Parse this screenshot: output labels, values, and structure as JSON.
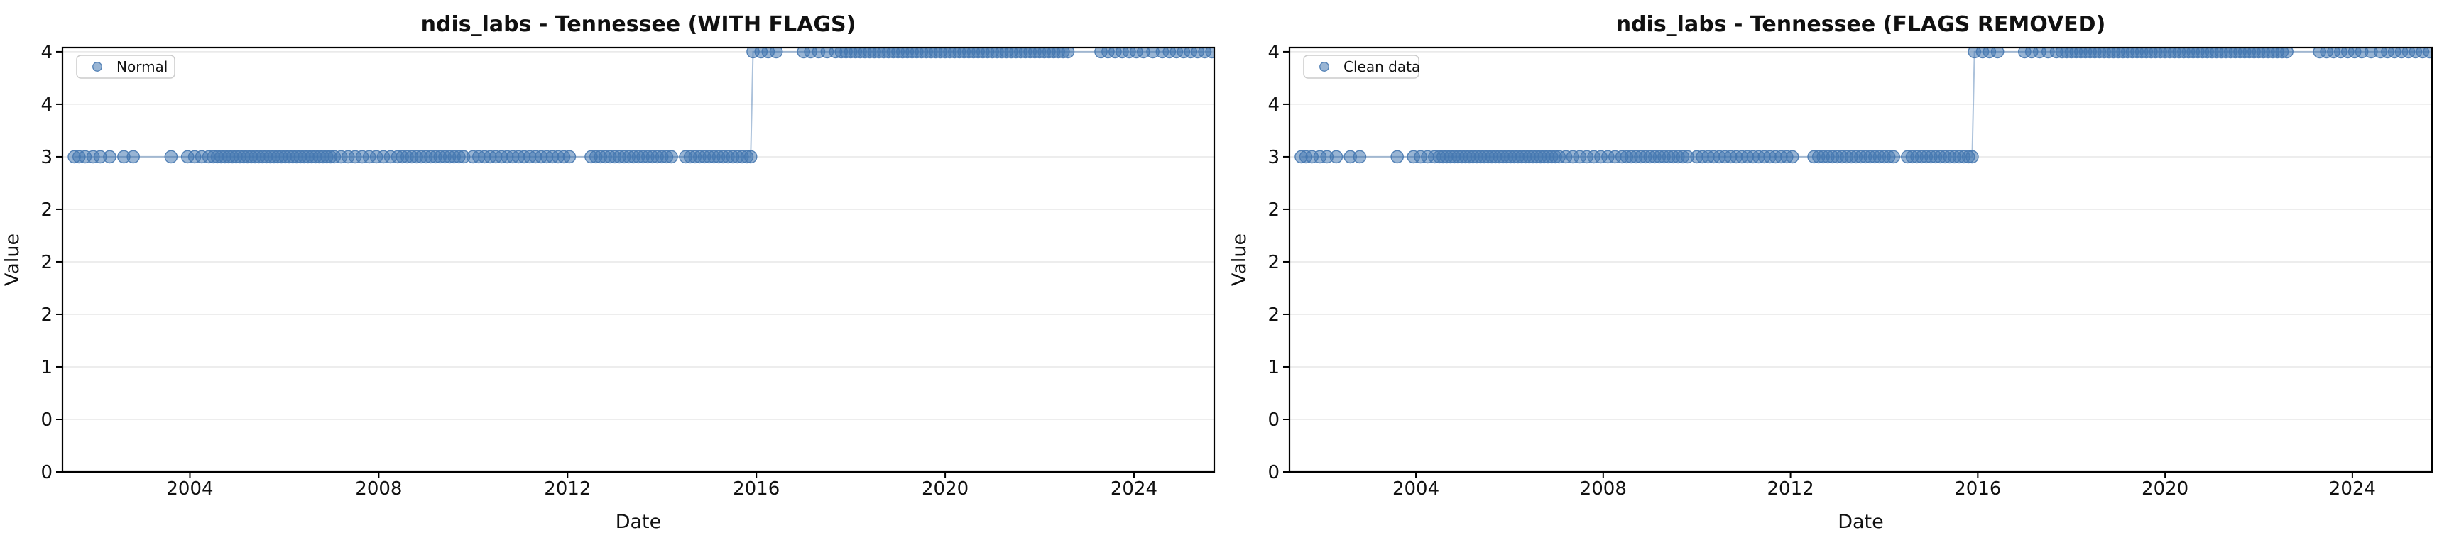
{
  "figure": {
    "background": "#ffffff",
    "kind": "matplotlib-style dual subplot line/scatter figure"
  },
  "colors": {
    "series": "#4678b0",
    "grid": "#e7e7e7",
    "spine": "#000000",
    "text": "#111111",
    "legend_border": "#cccccc"
  },
  "chart_data": [
    {
      "type": "line",
      "title": "ndis_labs - Tennessee (WITH FLAGS)",
      "legend_label": "Normal",
      "legend_position": "upper left",
      "xlabel": "Date",
      "ylabel": "Value",
      "xlim": [
        2001.3,
        2025.7
      ],
      "ylim": [
        0,
        4.04
      ],
      "xticks": [
        2004,
        2008,
        2012,
        2016,
        2020,
        2024
      ],
      "yticks": [
        0,
        0.5,
        1,
        1.5,
        2,
        2.5,
        3,
        3.5,
        4
      ],
      "ytick_labels": [
        "0",
        "0",
        "1",
        "2",
        "2",
        "2",
        "3",
        "4",
        "4"
      ],
      "grid": "horizontal",
      "marker": "circle",
      "series_key": "shared_series",
      "note": "plots the exact same points as the right subplot"
    },
    {
      "type": "line",
      "title": "ndis_labs - Tennessee (FLAGS REMOVED)",
      "legend_label": "Clean data",
      "legend_position": "upper left",
      "xlabel": "Date",
      "ylabel": "Value",
      "xlim": [
        2001.3,
        2025.7
      ],
      "ylim": [
        0,
        4.04
      ],
      "xticks": [
        2004,
        2008,
        2012,
        2016,
        2020,
        2024
      ],
      "yticks": [
        0,
        0.5,
        1,
        1.5,
        2,
        2.5,
        3,
        3.5,
        4
      ],
      "ytick_labels": [
        "0",
        "0",
        "1",
        "2",
        "2",
        "2",
        "3",
        "4",
        "4"
      ],
      "grid": "horizontal",
      "marker": "circle",
      "series_key": "shared_series",
      "note": "plots the exact same points as the left subplot"
    }
  ],
  "shared_series": {
    "description": "Step series: value 3 from mid-2001 to late 2015, value 4 from late 2015 to mid-2025. Dates are decimal years.",
    "segments": [
      {
        "value": 3,
        "dates": [
          2001.55,
          2001.65,
          2001.78,
          2001.95,
          2002.1,
          2002.3,
          2002.6,
          2002.8,
          2003.6,
          2003.95,
          2004.1,
          2004.25,
          2004.4,
          2004.5,
          2004.58,
          2004.66,
          2004.74,
          2004.82,
          2004.9,
          2004.98,
          2005.06,
          2005.14,
          2005.22,
          2005.3,
          2005.38,
          2005.46,
          2005.54,
          2005.62,
          2005.7,
          2005.78,
          2005.86,
          2005.94,
          2006.02,
          2006.1,
          2006.18,
          2006.26,
          2006.34,
          2006.42,
          2006.5,
          2006.58,
          2006.66,
          2006.74,
          2006.82,
          2006.9,
          2006.98,
          2007.06,
          2007.2,
          2007.35,
          2007.5,
          2007.65,
          2007.8,
          2007.95,
          2008.1,
          2008.25,
          2008.4,
          2008.5,
          2008.6,
          2008.7,
          2008.8,
          2008.9,
          2009.0,
          2009.1,
          2009.2,
          2009.3,
          2009.4,
          2009.5,
          2009.6,
          2009.7,
          2009.8,
          2010.0,
          2010.12,
          2010.24,
          2010.36,
          2010.48,
          2010.6,
          2010.72,
          2010.84,
          2010.96,
          2011.08,
          2011.2,
          2011.32,
          2011.44,
          2011.56,
          2011.68,
          2011.8,
          2011.92,
          2012.04,
          2012.5,
          2012.6,
          2012.7,
          2012.8,
          2012.9,
          2013.0,
          2013.1,
          2013.2,
          2013.3,
          2013.4,
          2013.5,
          2013.6,
          2013.7,
          2013.8,
          2013.9,
          2014.0,
          2014.1,
          2014.2,
          2014.5,
          2014.6,
          2014.7,
          2014.8,
          2014.9,
          2015.0,
          2015.1,
          2015.2,
          2015.3,
          2015.4,
          2015.5,
          2015.6,
          2015.7,
          2015.8,
          2015.88
        ]
      },
      {
        "value": 4,
        "dates": [
          2015.93,
          2016.1,
          2016.25,
          2016.42,
          2017.0,
          2017.15,
          2017.32,
          2017.5,
          2017.68,
          2017.8,
          2017.9,
          2018.0,
          2018.1,
          2018.2,
          2018.3,
          2018.4,
          2018.5,
          2018.6,
          2018.7,
          2018.8,
          2018.9,
          2019.0,
          2019.1,
          2019.2,
          2019.3,
          2019.4,
          2019.5,
          2019.6,
          2019.7,
          2019.8,
          2019.9,
          2020.0,
          2020.1,
          2020.2,
          2020.3,
          2020.4,
          2020.5,
          2020.6,
          2020.7,
          2020.8,
          2020.9,
          2021.0,
          2021.1,
          2021.2,
          2021.3,
          2021.4,
          2021.5,
          2021.6,
          2021.7,
          2021.8,
          2021.9,
          2022.0,
          2022.1,
          2022.2,
          2022.3,
          2022.4,
          2022.5,
          2022.6,
          2023.3,
          2023.45,
          2023.6,
          2023.75,
          2023.9,
          2024.05,
          2024.2,
          2024.4,
          2024.6,
          2024.75,
          2024.9,
          2025.05,
          2025.2,
          2025.35,
          2025.5,
          2025.65
        ]
      }
    ]
  }
}
